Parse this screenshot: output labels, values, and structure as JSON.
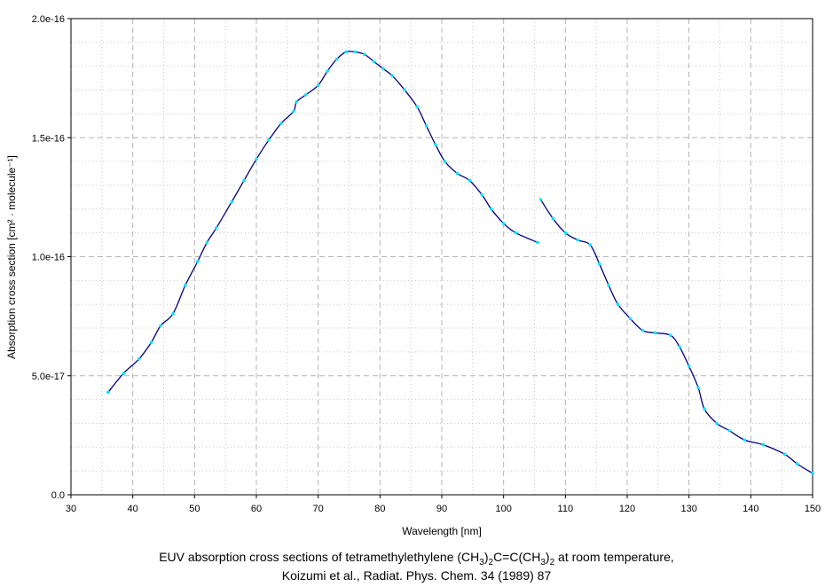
{
  "chart_data": {
    "type": "line",
    "xlabel": "Wavelength [nm]",
    "ylabel": "Absorption cross section [cm² · molecule⁻¹]",
    "xlim": [
      30,
      150
    ],
    "ylim": [
      0,
      2e-16
    ],
    "grid": true,
    "x_ticks": [
      30,
      40,
      50,
      60,
      70,
      80,
      90,
      100,
      110,
      120,
      130,
      140,
      150
    ],
    "x_tick_labels": [
      "30",
      "40",
      "50",
      "60",
      "70",
      "80",
      "90",
      "100",
      "110",
      "120",
      "130",
      "140",
      "150"
    ],
    "y_ticks": [
      0,
      5e-17,
      1e-16,
      1.5e-16,
      2e-16
    ],
    "y_tick_labels": [
      "0.0",
      "5.0e-17",
      "1.0e-16",
      "1.5e-16",
      "2.0e-16"
    ],
    "series": [
      {
        "x": [
          36.0,
          38.5,
          41.0,
          43.0,
          44.5,
          46.5,
          48.5,
          50.5,
          52.0,
          53.5,
          56.0,
          58.0,
          60.0,
          62.0,
          64.0,
          66.0,
          66.5,
          68.0,
          70.0,
          71.5,
          73.0,
          74.5,
          76.0,
          77.5,
          79.0,
          80.5,
          82.0,
          84.0,
          86.0,
          87.5,
          89.0,
          90.5,
          92.5,
          94.5,
          96.5,
          98.0,
          100.0,
          102.0,
          105.5
        ],
        "y": [
          4.3e-17,
          5.1e-17,
          5.7e-17,
          6.4e-17,
          7.1e-17,
          7.6e-17,
          8.8e-17,
          9.8e-17,
          1.06e-16,
          1.12e-16,
          1.23e-16,
          1.32e-16,
          1.41e-16,
          1.49e-16,
          1.56e-16,
          1.61e-16,
          1.65e-16,
          1.68e-16,
          1.72e-16,
          1.78e-16,
          1.83e-16,
          1.86e-16,
          1.86e-16,
          1.85e-16,
          1.82e-16,
          1.79e-16,
          1.76e-16,
          1.7e-16,
          1.63e-16,
          1.55e-16,
          1.47e-16,
          1.4e-16,
          1.35e-16,
          1.32e-16,
          1.26e-16,
          1.2e-16,
          1.14e-16,
          1.1e-16,
          1.06e-16
        ]
      },
      {
        "x": [
          106.0,
          108.0,
          110.0,
          112.0,
          114.0,
          115.5,
          117.0,
          118.5,
          120.5,
          122.5,
          124.5,
          127.0,
          128.5,
          130.0,
          131.5,
          132.5,
          134.5,
          136.5,
          139.0,
          142.0,
          145.5,
          147.5,
          150.0
        ],
        "y": [
          1.24e-16,
          1.16e-16,
          1.1e-16,
          1.07e-16,
          1.05e-16,
          9.7e-17,
          8.8e-17,
          8e-17,
          7.4e-17,
          6.9e-17,
          6.8e-17,
          6.7e-17,
          6.2e-17,
          5.4e-17,
          4.5e-17,
          3.6e-17,
          3e-17,
          2.7e-17,
          2.3e-17,
          2.1e-17,
          1.7e-17,
          1.3e-17,
          9e-18
        ]
      }
    ],
    "colors": {
      "line": "#000080",
      "marker": "#00e5ff",
      "grid_major": "#b4b4b4",
      "grid_minor": "#c8c8c8"
    },
    "caption": {
      "line1_parts": [
        "EUV absorption cross sections of tetramethylethylene (CH",
        "3",
        ")",
        "2",
        "C=C(CH",
        "3",
        ")",
        "2",
        " at room temperature,"
      ],
      "line2": "Koizumi et al., Radiat. Phys. Chem. 34 (1989) 87"
    }
  }
}
